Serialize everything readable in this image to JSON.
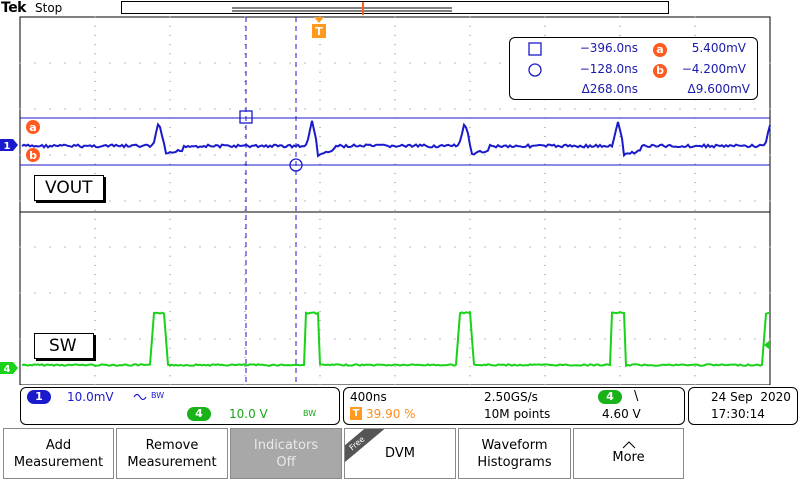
{
  "header": {
    "brand": "Tek",
    "run_state": "Stop"
  },
  "trigger_marker": {
    "label": "T"
  },
  "channels": {
    "ch1": {
      "number": "1",
      "name": "VOUT",
      "scale": "10.0mV",
      "coupling_icon": "ac-coupling-icon",
      "bw_flag": "BW",
      "color": "#1a1acc"
    },
    "ch4": {
      "number": "4",
      "name": "SW",
      "scale": "10.0 V",
      "bw_flag": "BW",
      "color": "#19d219"
    }
  },
  "cursors": {
    "a_label": "a",
    "b_label": "b",
    "square_time": "−396.0ns",
    "circle_time": "−128.0ns",
    "delta_time": "Δ268.0ns",
    "a_value": "5.400mV",
    "b_value": "−4.200mV",
    "delta_value": "Δ9.600mV"
  },
  "timebase": {
    "horizontal_scale": "400ns",
    "trigger_position": "39.90 %",
    "sample_rate": "2.50GS/s",
    "record_length": "10M points",
    "trigger_source": "4",
    "trigger_slope": "\\",
    "trigger_level": "4.60 V"
  },
  "datetime": {
    "date": "24 Sep  2020",
    "time": "17:30:14"
  },
  "buttons": {
    "add_measurement": [
      "Add",
      "Measurement"
    ],
    "remove_measurement": [
      "Remove",
      "Measurement"
    ],
    "indicators": [
      "Indicators",
      "Off"
    ],
    "dvm_badge": "Free",
    "dvm": "DVM",
    "waveform_histograms": [
      "Waveform",
      "Histograms"
    ],
    "more": "More"
  },
  "colors": {
    "accent_orange": "#ff5a1f",
    "cursor_blue": "#1a1aa8"
  }
}
